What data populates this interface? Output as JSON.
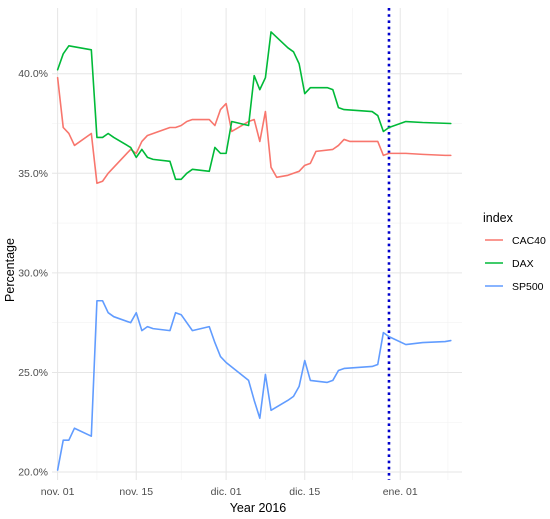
{
  "chart_data": {
    "type": "line",
    "xlabel": "Year 2016",
    "ylabel": "Percentage",
    "x_unit": "date",
    "xlim": [
      "2016-10-31",
      "2017-01-12"
    ],
    "ylim": [
      19.6,
      43.3
    ],
    "x_ticks": [
      {
        "date": "2016-11-01",
        "label": "nov. 01"
      },
      {
        "date": "2016-11-15",
        "label": "nov. 15"
      },
      {
        "date": "2016-12-01",
        "label": "dic. 01"
      },
      {
        "date": "2016-12-15",
        "label": "dic. 15"
      },
      {
        "date": "2017-01-01",
        "label": "ene. 01"
      }
    ],
    "y_ticks": [
      {
        "value": 20,
        "label": "20.0%"
      },
      {
        "value": 25,
        "label": "25.0%"
      },
      {
        "value": 30,
        "label": "30.0%"
      },
      {
        "value": 35,
        "label": "35.0%"
      },
      {
        "value": 40,
        "label": "40.0%"
      }
    ],
    "grid": true,
    "legend": {
      "title": "index",
      "position": "right"
    },
    "vline": {
      "date": "2016-12-30",
      "color": "#0000cc",
      "style": "dotted"
    },
    "series": [
      {
        "name": "CAC40",
        "color": "#f8766d",
        "points": [
          [
            "2016-11-01",
            39.8
          ],
          [
            "2016-11-02",
            37.3
          ],
          [
            "2016-11-03",
            37.0
          ],
          [
            "2016-11-04",
            36.4
          ],
          [
            "2016-11-07",
            37.0
          ],
          [
            "2016-11-08",
            34.5
          ],
          [
            "2016-11-09",
            34.6
          ],
          [
            "2016-11-10",
            35.0
          ],
          [
            "2016-11-11",
            35.3
          ],
          [
            "2016-11-14",
            36.2
          ],
          [
            "2016-11-15",
            36.0
          ],
          [
            "2016-11-16",
            36.6
          ],
          [
            "2016-11-17",
            36.9
          ],
          [
            "2016-11-18",
            37.0
          ],
          [
            "2016-11-21",
            37.3
          ],
          [
            "2016-11-22",
            37.3
          ],
          [
            "2016-11-23",
            37.4
          ],
          [
            "2016-11-24",
            37.6
          ],
          [
            "2016-11-25",
            37.7
          ],
          [
            "2016-11-28",
            37.7
          ],
          [
            "2016-11-29",
            37.4
          ],
          [
            "2016-11-30",
            38.2
          ],
          [
            "2016-12-01",
            38.5
          ],
          [
            "2016-12-02",
            37.1
          ],
          [
            "2016-12-05",
            37.6
          ],
          [
            "2016-12-06",
            37.7
          ],
          [
            "2016-12-07",
            36.6
          ],
          [
            "2016-12-08",
            38.1
          ],
          [
            "2016-12-09",
            35.3
          ],
          [
            "2016-12-10",
            34.8
          ],
          [
            "2016-12-12",
            34.9
          ],
          [
            "2016-12-13",
            35.0
          ],
          [
            "2016-12-14",
            35.1
          ],
          [
            "2016-12-15",
            35.4
          ],
          [
            "2016-12-16",
            35.5
          ],
          [
            "2016-12-17",
            36.1
          ],
          [
            "2016-12-20",
            36.2
          ],
          [
            "2016-12-21",
            36.4
          ],
          [
            "2016-12-22",
            36.7
          ],
          [
            "2016-12-23",
            36.6
          ],
          [
            "2016-12-27",
            36.6
          ],
          [
            "2016-12-28",
            36.6
          ],
          [
            "2016-12-29",
            35.9
          ],
          [
            "2016-12-30",
            36.0
          ],
          [
            "2017-01-02",
            36.0
          ],
          [
            "2017-01-05",
            35.95
          ],
          [
            "2017-01-09",
            35.9
          ],
          [
            "2017-01-10",
            35.9
          ]
        ]
      },
      {
        "name": "DAX",
        "color": "#00ba38",
        "points": [
          [
            "2016-11-01",
            40.2
          ],
          [
            "2016-11-02",
            41.0
          ],
          [
            "2016-11-03",
            41.4
          ],
          [
            "2016-11-07",
            41.2
          ],
          [
            "2016-11-08",
            36.8
          ],
          [
            "2016-11-09",
            36.8
          ],
          [
            "2016-11-10",
            37.0
          ],
          [
            "2016-11-11",
            36.8
          ],
          [
            "2016-11-14",
            36.3
          ],
          [
            "2016-11-15",
            35.8
          ],
          [
            "2016-11-16",
            36.2
          ],
          [
            "2016-11-17",
            35.8
          ],
          [
            "2016-11-18",
            35.7
          ],
          [
            "2016-11-21",
            35.6
          ],
          [
            "2016-11-22",
            34.7
          ],
          [
            "2016-11-23",
            34.7
          ],
          [
            "2016-11-24",
            35.0
          ],
          [
            "2016-11-25",
            35.2
          ],
          [
            "2016-11-28",
            35.1
          ],
          [
            "2016-11-29",
            36.3
          ],
          [
            "2016-11-30",
            36.0
          ],
          [
            "2016-12-01",
            36.0
          ],
          [
            "2016-12-02",
            37.6
          ],
          [
            "2016-12-05",
            37.4
          ],
          [
            "2016-12-06",
            39.9
          ],
          [
            "2016-12-07",
            39.2
          ],
          [
            "2016-12-08",
            39.8
          ],
          [
            "2016-12-09",
            42.1
          ],
          [
            "2016-12-12",
            41.3
          ],
          [
            "2016-12-13",
            41.1
          ],
          [
            "2016-12-14",
            40.5
          ],
          [
            "2016-12-15",
            39.0
          ],
          [
            "2016-12-16",
            39.3
          ],
          [
            "2016-12-19",
            39.3
          ],
          [
            "2016-12-20",
            39.2
          ],
          [
            "2016-12-21",
            38.3
          ],
          [
            "2016-12-22",
            38.2
          ],
          [
            "2016-12-27",
            38.1
          ],
          [
            "2016-12-28",
            37.9
          ],
          [
            "2016-12-29",
            37.1
          ],
          [
            "2016-12-30",
            37.3
          ],
          [
            "2017-01-02",
            37.6
          ],
          [
            "2017-01-05",
            37.55
          ],
          [
            "2017-01-10",
            37.5
          ]
        ]
      },
      {
        "name": "SP500",
        "color": "#619cff",
        "points": [
          [
            "2016-11-01",
            20.1
          ],
          [
            "2016-11-02",
            21.6
          ],
          [
            "2016-11-03",
            21.6
          ],
          [
            "2016-11-04",
            22.2
          ],
          [
            "2016-11-07",
            21.8
          ],
          [
            "2016-11-08",
            28.6
          ],
          [
            "2016-11-09",
            28.6
          ],
          [
            "2016-11-10",
            28.0
          ],
          [
            "2016-11-11",
            27.8
          ],
          [
            "2016-11-14",
            27.5
          ],
          [
            "2016-11-15",
            28.0
          ],
          [
            "2016-11-16",
            27.1
          ],
          [
            "2016-11-17",
            27.3
          ],
          [
            "2016-11-18",
            27.2
          ],
          [
            "2016-11-21",
            27.1
          ],
          [
            "2016-11-22",
            28.0
          ],
          [
            "2016-11-23",
            27.9
          ],
          [
            "2016-11-25",
            27.1
          ],
          [
            "2016-11-28",
            27.3
          ],
          [
            "2016-11-29",
            26.5
          ],
          [
            "2016-11-30",
            25.8
          ],
          [
            "2016-12-01",
            25.5
          ],
          [
            "2016-12-05",
            24.6
          ],
          [
            "2016-12-06",
            23.6
          ],
          [
            "2016-12-07",
            22.7
          ],
          [
            "2016-12-08",
            24.9
          ],
          [
            "2016-12-09",
            23.1
          ],
          [
            "2016-12-12",
            23.6
          ],
          [
            "2016-12-13",
            23.8
          ],
          [
            "2016-12-14",
            24.3
          ],
          [
            "2016-12-15",
            25.6
          ],
          [
            "2016-12-16",
            24.6
          ],
          [
            "2016-12-19",
            24.5
          ],
          [
            "2016-12-20",
            24.6
          ],
          [
            "2016-12-21",
            25.1
          ],
          [
            "2016-12-22",
            25.2
          ],
          [
            "2016-12-27",
            25.3
          ],
          [
            "2016-12-28",
            25.4
          ],
          [
            "2016-12-29",
            27.0
          ],
          [
            "2016-12-30",
            26.8
          ],
          [
            "2017-01-02",
            26.4
          ],
          [
            "2017-01-05",
            26.5
          ],
          [
            "2017-01-09",
            26.55
          ],
          [
            "2017-01-10",
            26.6
          ]
        ]
      }
    ]
  }
}
